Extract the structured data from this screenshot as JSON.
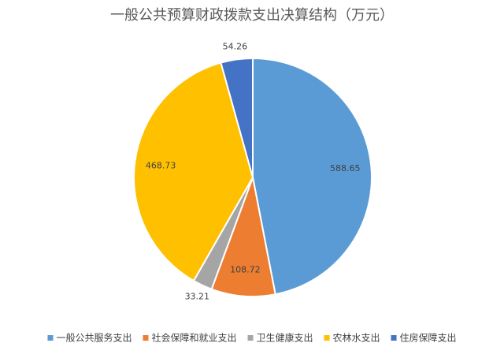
{
  "chart_data": {
    "type": "pie",
    "title": "一般公共预算财政拨款支出决算结构（万元）",
    "categories": [
      "一般公共服务支出",
      "社会保障和就业支出",
      "卫生健康支出",
      "农林水支出",
      "住房保障支出"
    ],
    "values": [
      588.65,
      108.72,
      33.21,
      468.73,
      54.26
    ],
    "colors": [
      "#5b9bd5",
      "#ed7d31",
      "#a5a5a5",
      "#ffc000",
      "#4472c4"
    ],
    "legend": "bottom"
  }
}
